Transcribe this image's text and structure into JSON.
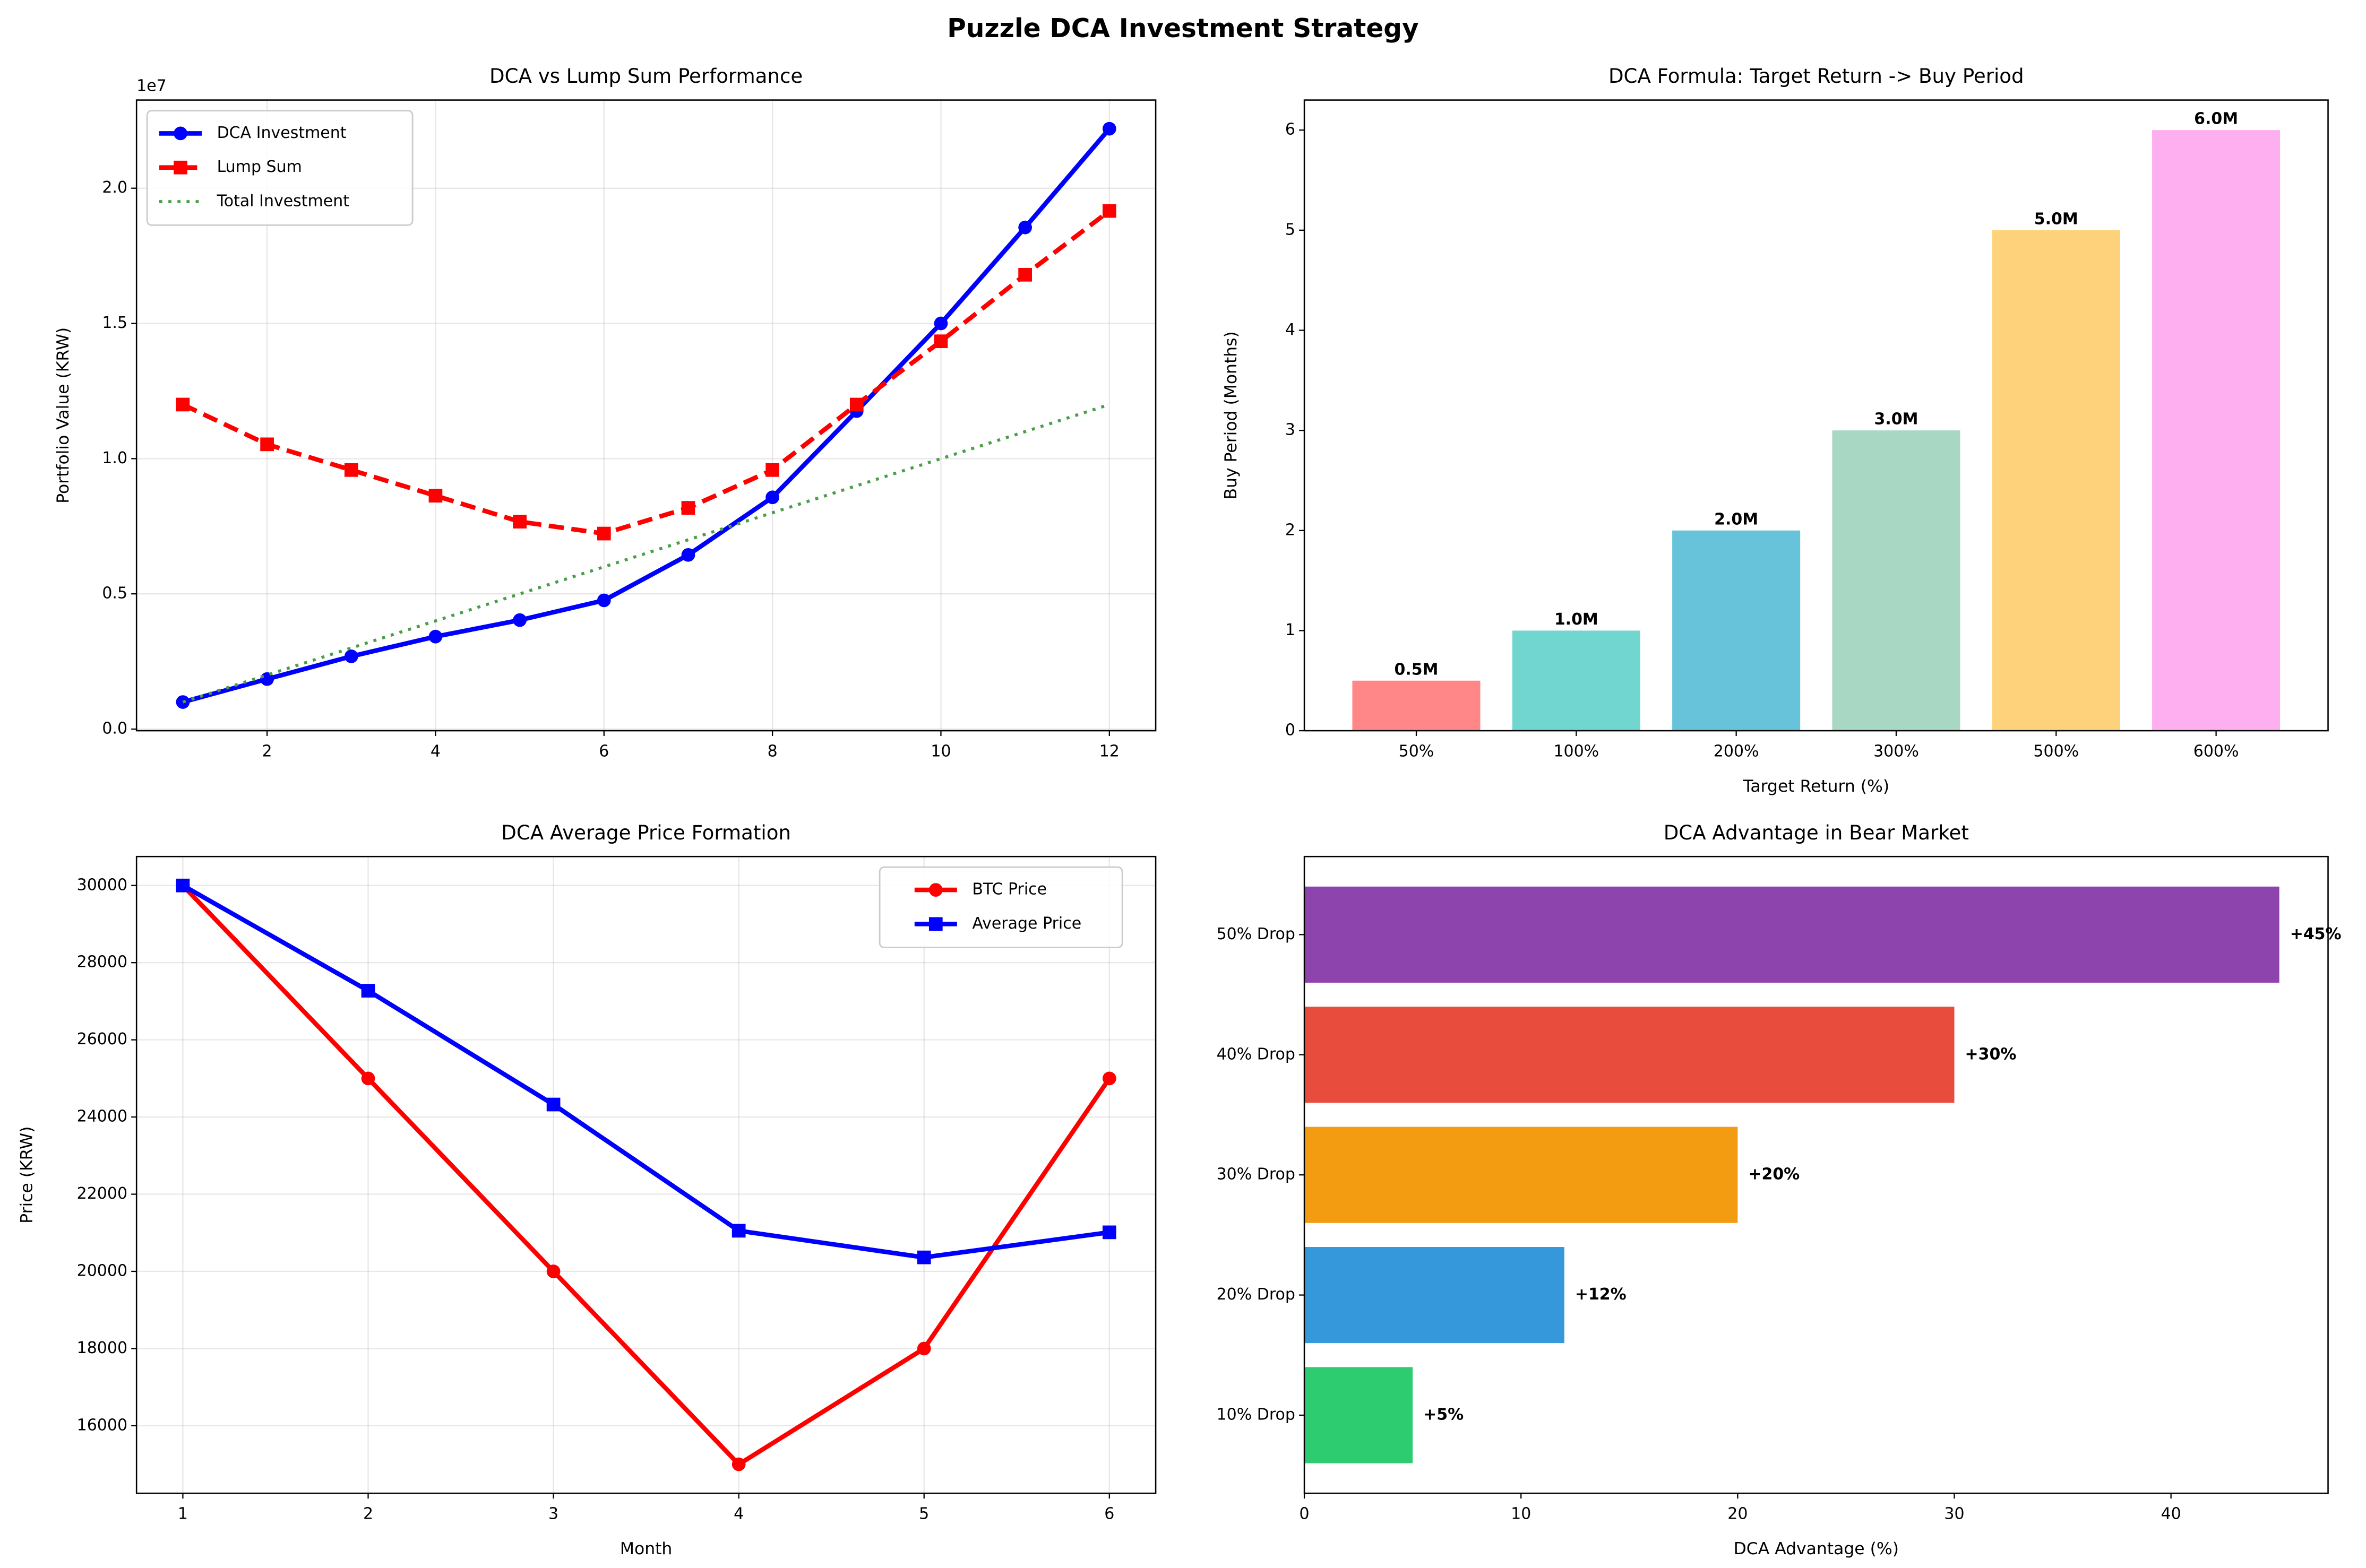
{
  "title": "Puzzle DCA Investment Strategy",
  "chart_data": [
    {
      "type": "line",
      "title": "DCA vs Lump Sum Performance",
      "y_label": "Portfolio Value (KRW)",
      "y_offset_label": "1e7",
      "x": [
        1,
        2,
        3,
        4,
        5,
        6,
        7,
        8,
        9,
        10,
        11,
        12
      ],
      "xlim": [
        0.45,
        12.55
      ],
      "xticks": [
        2,
        4,
        6,
        8,
        10,
        12
      ],
      "ylim": [
        -0.006,
        2.326
      ],
      "yticks": [
        {
          "value": 0,
          "label": "0.0"
        },
        {
          "value": 0.5,
          "label": "0.5"
        },
        {
          "value": 1,
          "label": "1.0"
        },
        {
          "value": 1.5,
          "label": "1.5"
        },
        {
          "value": 2,
          "label": "2.0"
        }
      ],
      "grid": true,
      "legend": "upper left",
      "series": [
        {
          "name": "DCA Investment",
          "color": "#0000ff",
          "linestyle": "solid",
          "marker": "circle",
          "width": 3,
          "values": [
            0.1,
            0.185,
            0.269,
            0.342,
            0.403,
            0.476,
            0.644,
            0.857,
            1.176,
            1.5,
            1.855,
            2.22
          ]
        },
        {
          "name": "Lump Sum",
          "color": "#ff0000",
          "linestyle": "dashed",
          "marker": "square",
          "width": 3,
          "values": [
            1.2,
            1.053,
            0.958,
            0.863,
            0.767,
            0.723,
            0.818,
            0.958,
            1.2,
            1.434,
            1.68,
            1.916
          ]
        },
        {
          "name": "Total Investment",
          "color": "#4a9e4a",
          "linestyle": "dotted",
          "marker": "none",
          "width": 2,
          "values": [
            0.1,
            0.2,
            0.3,
            0.4,
            0.5,
            0.6,
            0.7,
            0.8,
            0.9,
            1.0,
            1.1,
            1.2
          ]
        }
      ]
    },
    {
      "type": "bar",
      "title": "DCA Formula: Target Return -> Buy Period",
      "x_label": "Target Return (%)",
      "y_label": "Buy Period (Months)",
      "categories": [
        "50%",
        "100%",
        "200%",
        "300%",
        "500%",
        "600%"
      ],
      "values": [
        0.5,
        1,
        2,
        3,
        5,
        6
      ],
      "value_labels": [
        "0.5M",
        "1.0M",
        "2.0M",
        "3.0M",
        "5.0M",
        "6.0M"
      ],
      "colors": [
        "#ff8787",
        "#70d6cf",
        "#67c3d9",
        "#a8d8c4",
        "#fdd27a",
        "#fdaff0"
      ],
      "ylim": [
        0,
        6.3
      ],
      "yticks": [
        0,
        1,
        2,
        3,
        4,
        5,
        6
      ],
      "grid": false
    },
    {
      "type": "line",
      "title": "DCA Average Price Formation",
      "x_label": "Month",
      "y_label": "Price (KRW)",
      "x": [
        1,
        2,
        3,
        4,
        5,
        6
      ],
      "xlim": [
        0.75,
        6.25
      ],
      "xticks": [
        1,
        2,
        3,
        4,
        5,
        6
      ],
      "ylim": [
        14250,
        30750
      ],
      "yticks": [
        16000,
        18000,
        20000,
        22000,
        24000,
        26000,
        28000,
        30000
      ],
      "grid": true,
      "legend": "upper right",
      "series": [
        {
          "name": "BTC Price",
          "color": "#ff0000",
          "linestyle": "solid",
          "marker": "circle",
          "width": 3,
          "values": [
            30000,
            25000,
            20000,
            15000,
            18000,
            25000
          ]
        },
        {
          "name": "Average Price",
          "color": "#0000ff",
          "linestyle": "solid",
          "marker": "square",
          "width": 3,
          "values": [
            30000,
            27273,
            24324,
            21053,
            20362,
            21012
          ]
        }
      ]
    },
    {
      "type": "barh",
      "title": "DCA Advantage in Bear Market",
      "x_label": "DCA Advantage (%)",
      "categories": [
        "10% Drop",
        "20% Drop",
        "30% Drop",
        "40% Drop",
        "50% Drop"
      ],
      "values": [
        5,
        12,
        20,
        30,
        45
      ],
      "value_labels": [
        "+5%",
        "+12%",
        "+20%",
        "+30%",
        "+45%"
      ],
      "colors": [
        "#2ecc71",
        "#3498db",
        "#f39c12",
        "#e74c3c",
        "#8e44ad"
      ],
      "xlim": [
        0,
        47.25
      ],
      "xticks": [
        0,
        10,
        20,
        30,
        40
      ],
      "grid": false
    }
  ]
}
